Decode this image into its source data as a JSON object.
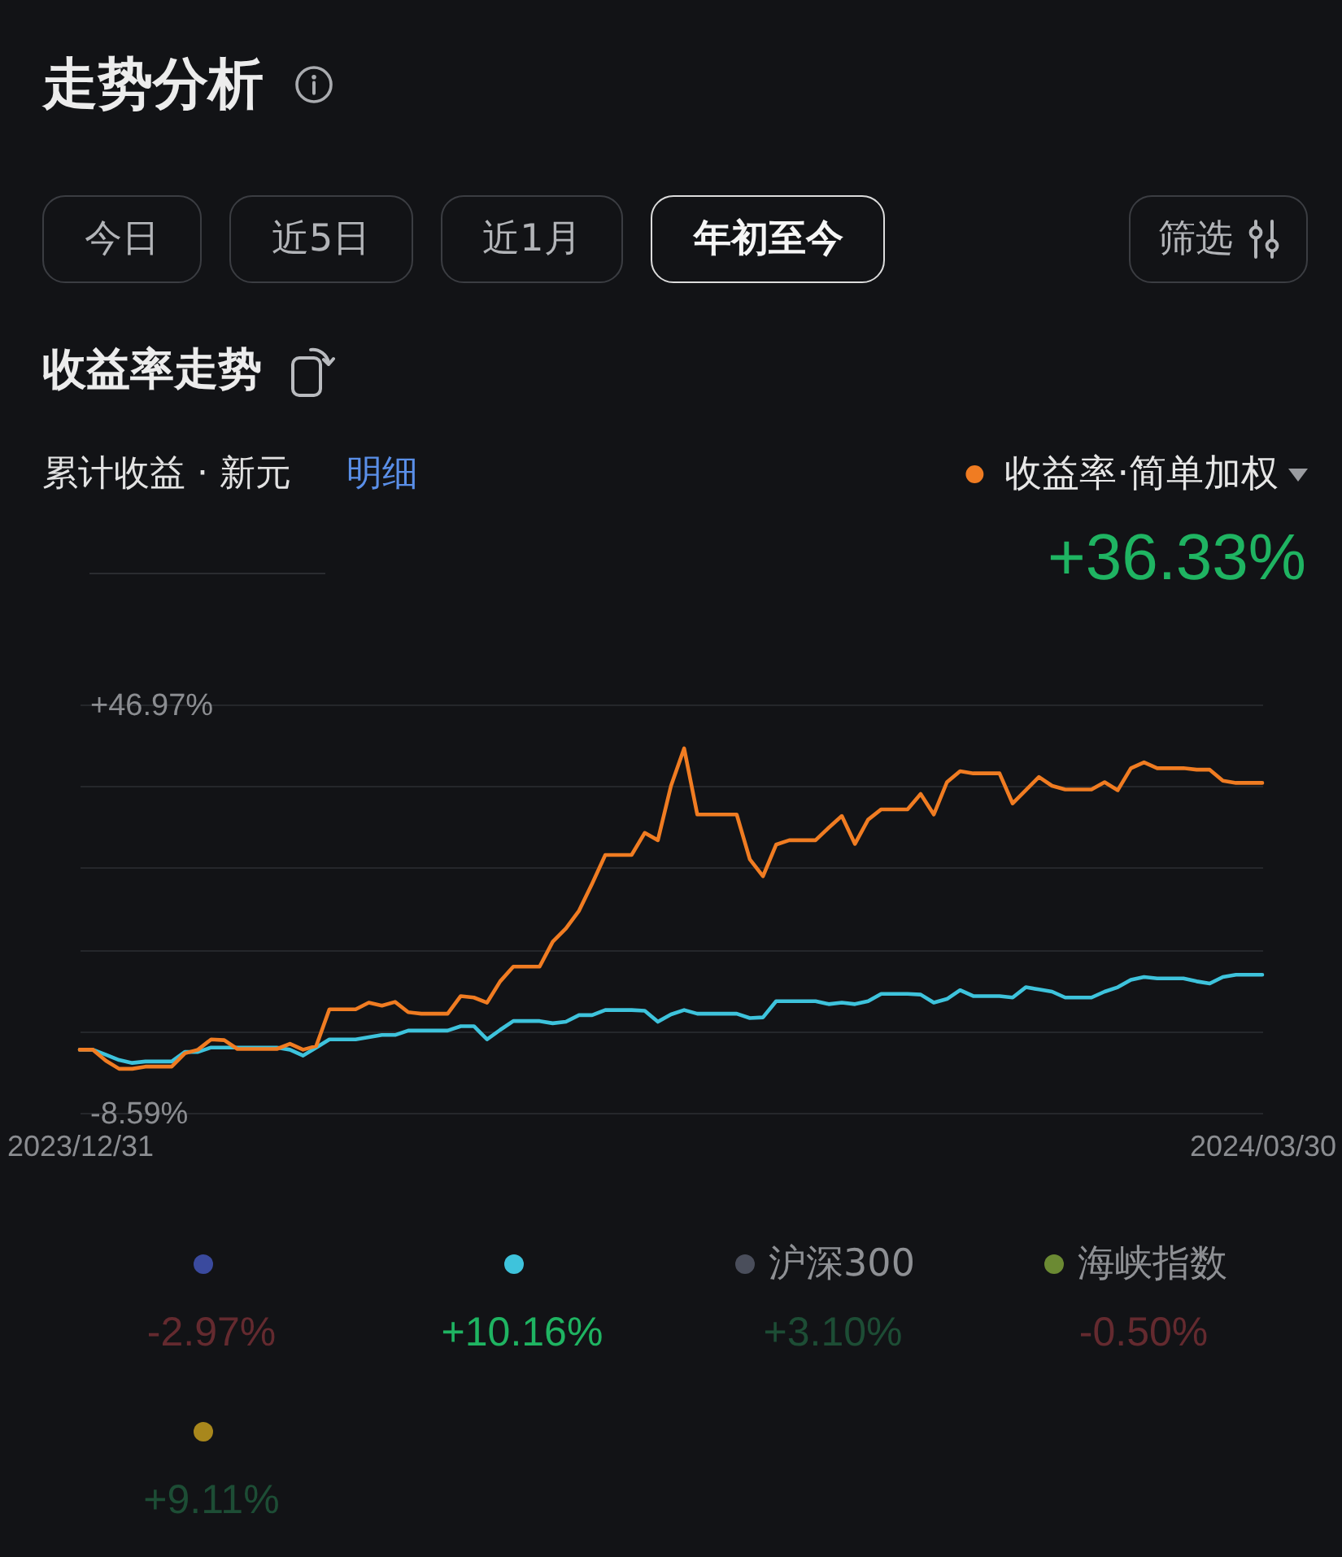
{
  "chart_data": [
    {
      "type": "line",
      "title": "走势分析",
      "subtitle": "收益率走势",
      "annotations": [
        "今日",
        "近5日",
        "近1月",
        "年初至今",
        "筛选",
        "累计收益 · 新元",
        "明细",
        "+36.33%"
      ],
      "series": [
        {
          "name": "收益率·简单加权",
          "color": "#f07c22",
          "x": [
            "2023-12-31",
            "2024-01-01",
            "2024-01-02",
            "2024-01-03",
            "2024-01-04",
            "2024-01-05",
            "2024-01-07",
            "2024-01-08",
            "2024-01-09",
            "2024-01-10",
            "2024-01-11",
            "2024-01-12",
            "2024-01-15",
            "2024-01-16",
            "2024-01-17",
            "2024-01-18",
            "2024-01-19",
            "2024-01-21",
            "2024-01-22",
            "2024-01-23",
            "2024-01-24",
            "2024-01-25",
            "2024-01-26",
            "2024-01-28",
            "2024-01-29",
            "2024-01-30",
            "2024-01-31",
            "2024-02-01",
            "2024-02-02",
            "2024-02-04",
            "2024-02-05",
            "2024-02-06",
            "2024-02-07",
            "2024-02-08",
            "2024-02-09",
            "2024-02-11",
            "2024-02-12",
            "2024-02-13",
            "2024-02-14",
            "2024-02-15",
            "2024-02-16",
            "2024-02-19",
            "2024-02-20",
            "2024-02-21",
            "2024-02-22",
            "2024-02-23",
            "2024-02-25",
            "2024-02-26",
            "2024-02-27",
            "2024-02-28",
            "2024-02-29",
            "2024-03-01",
            "2024-03-03",
            "2024-03-04",
            "2024-03-05",
            "2024-03-06",
            "2024-03-07",
            "2024-03-08",
            "2024-03-10",
            "2024-03-11",
            "2024-03-12",
            "2024-03-13",
            "2024-03-14",
            "2024-03-15",
            "2024-03-17",
            "2024-03-18",
            "2024-03-19",
            "2024-03-20",
            "2024-03-21",
            "2024-03-22",
            "2024-03-24",
            "2024-03-25",
            "2024-03-26",
            "2024-03-27",
            "2024-03-28",
            "2024-03-30"
          ],
          "values": [
            0,
            0,
            -1.5,
            -2.6,
            -2.6,
            -2.3,
            -2.3,
            -0.5,
            0,
            1.4,
            1.3,
            0.1,
            0.1,
            0.8,
            0,
            0.5,
            5.5,
            5.5,
            6.4,
            6.0,
            6.5,
            5.1,
            4.9,
            4.9,
            7.3,
            7.1,
            6.4,
            9.3,
            11.3,
            11.3,
            14.7,
            16.5,
            18.9,
            22.6,
            26.5,
            26.5,
            29.5,
            28.5,
            35.9,
            41.0,
            32.0,
            32.0,
            25.9,
            23.6,
            27.9,
            28.5,
            28.5,
            30.2,
            31.8,
            28.0,
            31.3,
            32.7,
            32.7,
            34.8,
            32.0,
            36.4,
            37.9,
            37.6,
            37.6,
            33.5,
            35.3,
            37.1,
            35.9,
            35.4,
            35.4,
            36.4,
            35.3,
            38.3,
            39.1,
            38.3,
            38.3,
            38.1,
            38.1,
            36.6,
            36.3,
            36.3
          ]
        },
        {
          "color": "#3ec3dc",
          "x": [
            "2023-12-31",
            "2024-01-01",
            "2024-01-02",
            "2024-01-03",
            "2024-01-04",
            "2024-01-05",
            "2024-01-07",
            "2024-01-08",
            "2024-01-09",
            "2024-01-10",
            "2024-01-15",
            "2024-01-16",
            "2024-01-17",
            "2024-01-18",
            "2024-01-19",
            "2024-01-21",
            "2024-01-22",
            "2024-01-23",
            "2024-01-24",
            "2024-01-25",
            "2024-01-28",
            "2024-01-29",
            "2024-01-30",
            "2024-01-31",
            "2024-02-01",
            "2024-02-02",
            "2024-02-04",
            "2024-02-05",
            "2024-02-06",
            "2024-02-07",
            "2024-02-08",
            "2024-02-09",
            "2024-02-11",
            "2024-02-12",
            "2024-02-13",
            "2024-02-14",
            "2024-02-15",
            "2024-02-16",
            "2024-02-19",
            "2024-02-20",
            "2024-02-21",
            "2024-02-22",
            "2024-02-25",
            "2024-02-26",
            "2024-02-27",
            "2024-02-28",
            "2024-02-29",
            "2024-03-01",
            "2024-03-03",
            "2024-03-04",
            "2024-03-05",
            "2024-03-06",
            "2024-03-07",
            "2024-03-08",
            "2024-03-10",
            "2024-03-11",
            "2024-03-12",
            "2024-03-13",
            "2024-03-14",
            "2024-03-15",
            "2024-03-17",
            "2024-03-18",
            "2024-03-19",
            "2024-03-20",
            "2024-03-21",
            "2024-03-22",
            "2024-03-24",
            "2024-03-25",
            "2024-03-26",
            "2024-03-27",
            "2024-03-28",
            "2024-03-30"
          ],
          "values": [
            0,
            0,
            -0.7,
            -1.4,
            -1.8,
            -1.6,
            -1.6,
            -0.3,
            -0.3,
            0.3,
            0.3,
            0,
            -0.8,
            0.3,
            1.4,
            1.4,
            1.7,
            2.0,
            2.0,
            2.6,
            2.6,
            3.2,
            3.2,
            1.4,
            2.7,
            3.9,
            3.9,
            3.6,
            3.8,
            4.7,
            4.7,
            5.4,
            5.4,
            5.3,
            3.8,
            4.8,
            5.4,
            4.9,
            4.9,
            4.3,
            4.4,
            6.6,
            6.6,
            6.2,
            6.4,
            6.2,
            6.6,
            7.6,
            7.6,
            7.5,
            6.4,
            6.9,
            8.1,
            7.3,
            7.3,
            7.1,
            8.5,
            8.2,
            7.9,
            7.1,
            7.1,
            7.9,
            8.5,
            9.5,
            9.9,
            9.7,
            9.7,
            9.3,
            9.0,
            9.9,
            10.2,
            10.2
          ]
        }
      ],
      "xlim": [
        "2023-12-31",
        "2024-03-30"
      ],
      "xticks": [
        {
          "value": "2023-12-31",
          "label": "2023/12/31"
        },
        {
          "value": "2024-03-30",
          "label": "2024/03/30"
        }
      ],
      "ylim": [
        -8.59,
        46.97
      ],
      "yticks": [
        {
          "value": 46.97,
          "label": "+46.97%"
        },
        {
          "value": 35.86,
          "label": null
        },
        {
          "value": 24.75,
          "label": null
        },
        {
          "value": 13.63,
          "label": null
        },
        {
          "value": 2.52,
          "label": null
        },
        {
          "value": -8.59,
          "label": "-8.59%"
        }
      ],
      "grid": "y",
      "legend": "top right"
    },
    {
      "type": "other",
      "categories": [
        null,
        null,
        "沪深300",
        "海峡指数",
        null
      ],
      "values": [
        -2.97,
        10.16,
        3.1,
        -0.5,
        9.11
      ],
      "colors": [
        "#3a4a9e",
        "#3ec3dc",
        "#4a4e5b",
        "#6b8a33",
        "#a8871c"
      ],
      "value_labels": [
        "-2.97%",
        "+10.16%",
        "+3.10%",
        "-0.50%",
        "+9.11%"
      ]
    }
  ]
}
